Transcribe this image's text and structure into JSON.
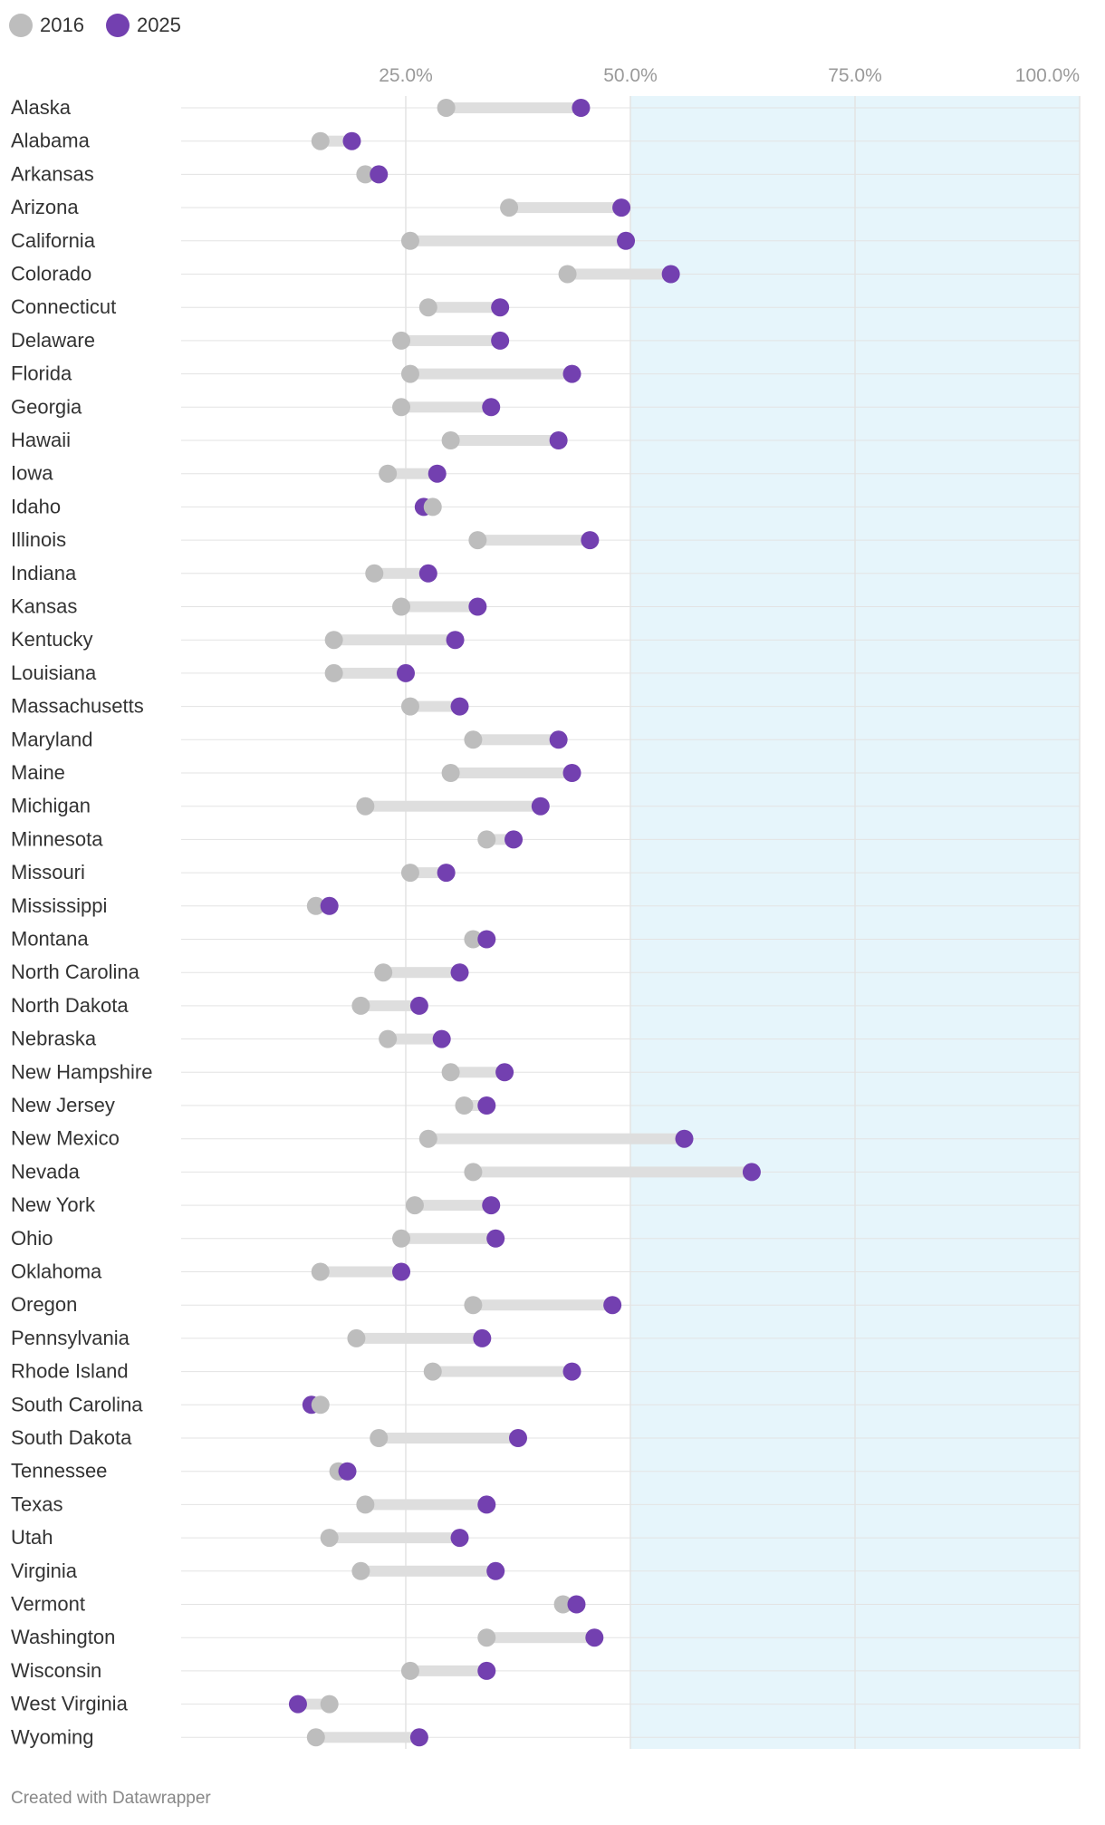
{
  "legend": [
    {
      "label": "2016",
      "color": "#bdbdbd"
    },
    {
      "label": "2025",
      "color": "#7340b0"
    }
  ],
  "footer": "Created with Datawrapper",
  "colors": {
    "highlight_band": "#e6f5fb",
    "connector": "#dedede",
    "grid": "#e3e3e3",
    "tick_label": "#9a9a9a"
  },
  "chart_data": {
    "type": "dumbbell",
    "x_axis": {
      "min": 0,
      "max": 100,
      "ticks": [
        25,
        50,
        75,
        100
      ],
      "tick_labels": [
        "25.0%",
        "50.0%",
        "75.0%",
        "100.0%"
      ],
      "position": "top"
    },
    "highlight_range": [
      50,
      100
    ],
    "series": [
      {
        "name": "2016",
        "color": "#bdbdbd"
      },
      {
        "name": "2025",
        "color": "#7340b0"
      }
    ],
    "categories": [
      "Alaska",
      "Alabama",
      "Arkansas",
      "Arizona",
      "California",
      "Colorado",
      "Connecticut",
      "Delaware",
      "Florida",
      "Georgia",
      "Hawaii",
      "Iowa",
      "Idaho",
      "Illinois",
      "Indiana",
      "Kansas",
      "Kentucky",
      "Louisiana",
      "Massachusetts",
      "Maryland",
      "Maine",
      "Michigan",
      "Minnesota",
      "Missouri",
      "Mississippi",
      "Montana",
      "North Carolina",
      "North Dakota",
      "Nebraska",
      "New Hampshire",
      "New Jersey",
      "New Mexico",
      "Nevada",
      "New York",
      "Ohio",
      "Oklahoma",
      "Oregon",
      "Pennsylvania",
      "Rhode Island",
      "South Carolina",
      "South Dakota",
      "Tennessee",
      "Texas",
      "Utah",
      "Virginia",
      "Vermont",
      "Washington",
      "Wisconsin",
      "West Virginia",
      "Wyoming"
    ],
    "values_2016": [
      29.5,
      15.5,
      20.5,
      36.5,
      25.5,
      43,
      27.5,
      24.5,
      25.5,
      24.5,
      30,
      23,
      28,
      33,
      21.5,
      24.5,
      17,
      17,
      25.5,
      32.5,
      30,
      20.5,
      34,
      25.5,
      15,
      32.5,
      22.5,
      20,
      23,
      30,
      31.5,
      27.5,
      32.5,
      26,
      24.5,
      15.5,
      32.5,
      19.5,
      28,
      15.5,
      22,
      17.5,
      20.5,
      16.5,
      20,
      42.5,
      34,
      25.5,
      16.5,
      15
    ],
    "values_2025": [
      44.5,
      19,
      22,
      49,
      49.5,
      54.5,
      35.5,
      35.5,
      43.5,
      34.5,
      42,
      28.5,
      27,
      45.5,
      27.5,
      33,
      30.5,
      25,
      31,
      42,
      43.5,
      40,
      37,
      29.5,
      16.5,
      34,
      31,
      26.5,
      29,
      36,
      34,
      56,
      63.5,
      34.5,
      35,
      24.5,
      48,
      33.5,
      43.5,
      14.5,
      37.5,
      18.5,
      34,
      31,
      35,
      44,
      46,
      34,
      13,
      26.5
    ]
  }
}
